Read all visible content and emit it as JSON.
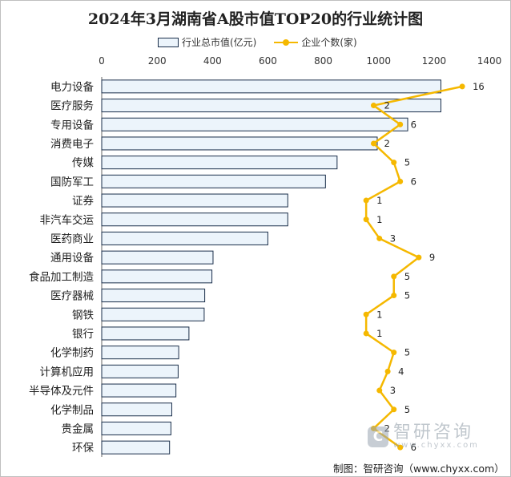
{
  "title": "2024年3月湖南省A股市值TOP20的行业统计图",
  "legend": {
    "bar_label": "行业总市值(亿元)",
    "line_label": "企业个数(家)"
  },
  "watermark": {
    "cn": "智研咨询",
    "url": "www.chyxx.com"
  },
  "source": "制图：智研咨询（www.chyxx.com）",
  "colors": {
    "bar_fill": "#ecf4fb",
    "bar_stroke": "#1a2e4a",
    "line": "#f5b800"
  },
  "chart_data": {
    "type": "bar",
    "orientation": "horizontal",
    "categories": [
      "电力设备",
      "医疗服务",
      "专用设备",
      "消费电子",
      "传媒",
      "国防军工",
      "证券",
      "非汽车交运",
      "医药商业",
      "通用设备",
      "食品加工制造",
      "医疗器械",
      "钢铁",
      "银行",
      "化学制药",
      "计算机应用",
      "半导体及元件",
      "化学制品",
      "贵金属",
      "环保"
    ],
    "x_ticks": [
      0,
      200,
      400,
      600,
      800,
      1000,
      1200,
      1400
    ],
    "xlim": [
      0,
      1400
    ],
    "xaxis_position": "top",
    "series": [
      {
        "name": "行业总市值(亿元)",
        "type": "bar",
        "values": [
          1225,
          1225,
          1105,
          995,
          850,
          808,
          672,
          672,
          600,
          402,
          398,
          372,
          370,
          315,
          278,
          276,
          268,
          253,
          250,
          245
        ]
      },
      {
        "name": "企业个数(家)",
        "type": "line",
        "values": [
          16,
          2,
          6,
          2,
          5,
          6,
          1,
          1,
          3,
          9,
          5,
          5,
          1,
          1,
          5,
          4,
          3,
          5,
          2,
          6
        ],
        "x_positions": [
          1302,
          982,
          1078,
          982,
          1055,
          1078,
          955,
          955,
          1003,
          1145,
          1055,
          1055,
          955,
          955,
          1055,
          1033,
          1003,
          1055,
          982,
          1078
        ]
      }
    ],
    "legend_position": "top",
    "grid": false
  }
}
